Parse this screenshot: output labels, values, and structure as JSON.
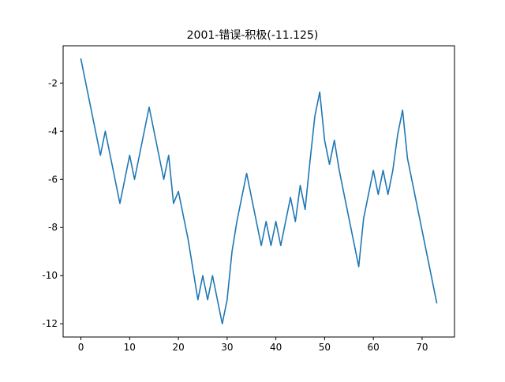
{
  "chart_data": {
    "type": "line",
    "title": "2001-错误-积极(-11.125)",
    "xlabel": "",
    "ylabel": "",
    "xlim": [
      -3.65,
      76.65
    ],
    "ylim": [
      -12.55,
      -0.45
    ],
    "xticks": [
      0,
      10,
      20,
      30,
      40,
      50,
      60,
      70
    ],
    "yticks": [
      -12,
      -10,
      -8,
      -6,
      -4,
      -2
    ],
    "grid": false,
    "line_color": "#1f77b4",
    "series": [
      {
        "x": [
          0,
          1,
          2,
          3,
          4,
          5,
          6,
          7,
          8,
          9,
          10,
          11,
          12,
          13,
          14,
          15,
          16,
          17,
          18,
          19,
          20,
          21,
          22,
          23,
          24,
          25,
          26,
          27,
          28,
          29,
          30,
          31,
          32,
          33,
          34,
          35,
          36,
          37,
          38,
          39,
          40,
          41,
          42,
          43,
          44,
          45,
          46,
          47,
          48,
          49,
          50,
          51,
          52,
          53,
          54,
          55,
          56,
          57,
          58,
          59,
          60,
          61,
          62,
          63,
          64,
          65,
          66,
          67,
          68,
          69,
          70,
          71,
          72,
          73
        ],
        "values": [
          -1,
          -2,
          -3,
          -4,
          -5,
          -4,
          -5,
          -6,
          -7,
          -6,
          -5,
          -6,
          -5,
          -4,
          -3,
          -4,
          -5,
          -6,
          -5,
          -7,
          -6.5,
          -7.5,
          -8.5,
          -9.75,
          -11,
          -10,
          -11,
          -10,
          -11,
          -12,
          -11,
          -9,
          -7.75,
          -6.75,
          -5.75,
          -6.75,
          -7.75,
          -8.75,
          -7.75,
          -8.75,
          -7.75,
          -8.75,
          -7.75,
          -6.75,
          -7.75,
          -6.25,
          -7.25,
          -5.25,
          -3.375,
          -2.375,
          -4.375,
          -5.375,
          -4.375,
          -5.625,
          -6.625,
          -7.625,
          -8.625,
          -9.625,
          -7.625,
          -6.625,
          -5.625,
          -6.625,
          -5.625,
          -6.625,
          -5.625,
          -4.125,
          -3.125,
          -5.125,
          -6.125,
          -7.125,
          -8.125,
          -9.125,
          -10.125,
          -11.125
        ]
      }
    ]
  }
}
